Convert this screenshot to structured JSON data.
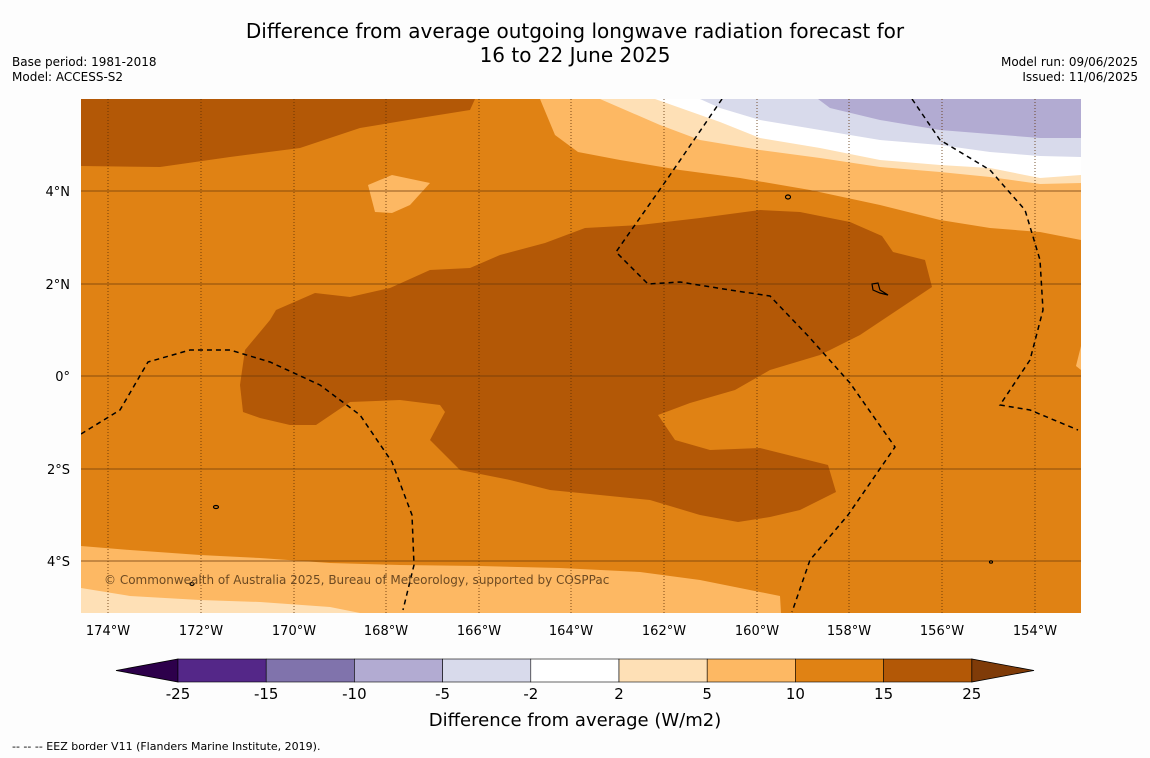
{
  "title": {
    "line1": "Difference from average outgoing longwave radiation forecast for",
    "line2": "16 to 22 June 2025"
  },
  "meta_left": {
    "base_period": "Base period: 1981-2018",
    "model": "Model: ACCESS-S2"
  },
  "meta_right": {
    "model_run": "Model run: 09/06/2025",
    "issued": "Issued: 11/06/2025"
  },
  "map": {
    "lon_labels": [
      "174°W",
      "172°W",
      "170°W",
      "168°W",
      "166°W",
      "164°W",
      "162°W",
      "160°W",
      "158°W",
      "156°W",
      "154°W"
    ],
    "lat_labels": [
      "4°N",
      "2°N",
      "0°",
      "2°S",
      "4°S"
    ],
    "credit": "© Commonwealth of Australia 2025, Bureau of Meteorology, supported by COSPPac"
  },
  "colorbar": {
    "title": "Difference from average (W/m2)",
    "ticks": [
      "-25",
      "-15",
      "-10",
      "-5",
      "-2",
      "2",
      "5",
      "10",
      "15",
      "25"
    ],
    "colors": [
      "#542788",
      "#8073ac",
      "#b2abd2",
      "#d8daeb",
      "#ffffff",
      "#fee0b6",
      "#fdb863",
      "#e08214",
      "#b35806"
    ],
    "extend_low_color": "#2d004b",
    "extend_high_color": "#7f3b08"
  },
  "footer": "--  --  -- EEZ border V11 (Flanders Marine Institute, 2019)."
}
